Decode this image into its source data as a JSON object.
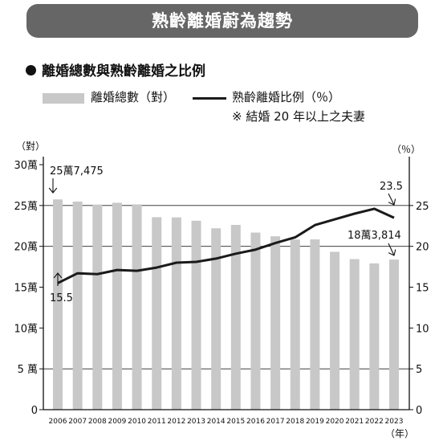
{
  "header": {
    "title": "熟齡離婚蔚為趨勢"
  },
  "subtitle": "離婚總數與熟齡離婚之比例",
  "legend": {
    "bar_label": "離婚總數（對）",
    "line_label": "熟齡離婚比例（％）",
    "note": "※ 結婚 20 年以上之夫妻"
  },
  "colors": {
    "bar": "#c8c8c8",
    "line": "#1a1a1a",
    "banner": "#666666"
  },
  "chart_data": {
    "type": "bar+line",
    "categories": [
      "2006",
      "2007",
      "2008",
      "2009",
      "2010",
      "2011",
      "2012",
      "2013",
      "2014",
      "2015",
      "2016",
      "2017",
      "2018",
      "2019",
      "2020",
      "2021",
      "2022",
      "2023"
    ],
    "series": [
      {
        "name": "離婚總數（對）",
        "type": "bar",
        "axis": "left",
        "values": [
          257475,
          254832,
          251136,
          253353,
          251378,
          235720,
          235406,
          231383,
          222115,
          226238,
          216856,
          212296,
          208333,
          208496,
          193253,
          184384,
          179099,
          183814
        ]
      },
      {
        "name": "熟齡離婚比例（％）",
        "type": "line",
        "axis": "right",
        "values": [
          15.5,
          16.7,
          16.6,
          17.1,
          17.0,
          17.4,
          18.0,
          18.1,
          18.5,
          19.1,
          19.6,
          20.4,
          21.1,
          22.6,
          23.3,
          24.0,
          24.6,
          23.5
        ]
      }
    ],
    "y_left": {
      "unit_label": "（對）",
      "ylim": [
        0,
        300000
      ],
      "ticks": [
        "0",
        "5 萬",
        "10萬",
        "15萬",
        "20萬",
        "25萬",
        "30萬"
      ]
    },
    "y_right": {
      "unit_label": "（％）",
      "ylim": [
        0,
        30
      ],
      "ticks": [
        "0",
        "5",
        "10",
        "15",
        "20",
        "25"
      ]
    },
    "x_unit_label": "（年）",
    "annotations": {
      "first_bar": "25萬7,475",
      "first_line": "15.5",
      "last_line": "23.5",
      "last_bar": "18萬3,814"
    },
    "grid": "horizontal at 5, 20, 25 only (right axis units)"
  }
}
